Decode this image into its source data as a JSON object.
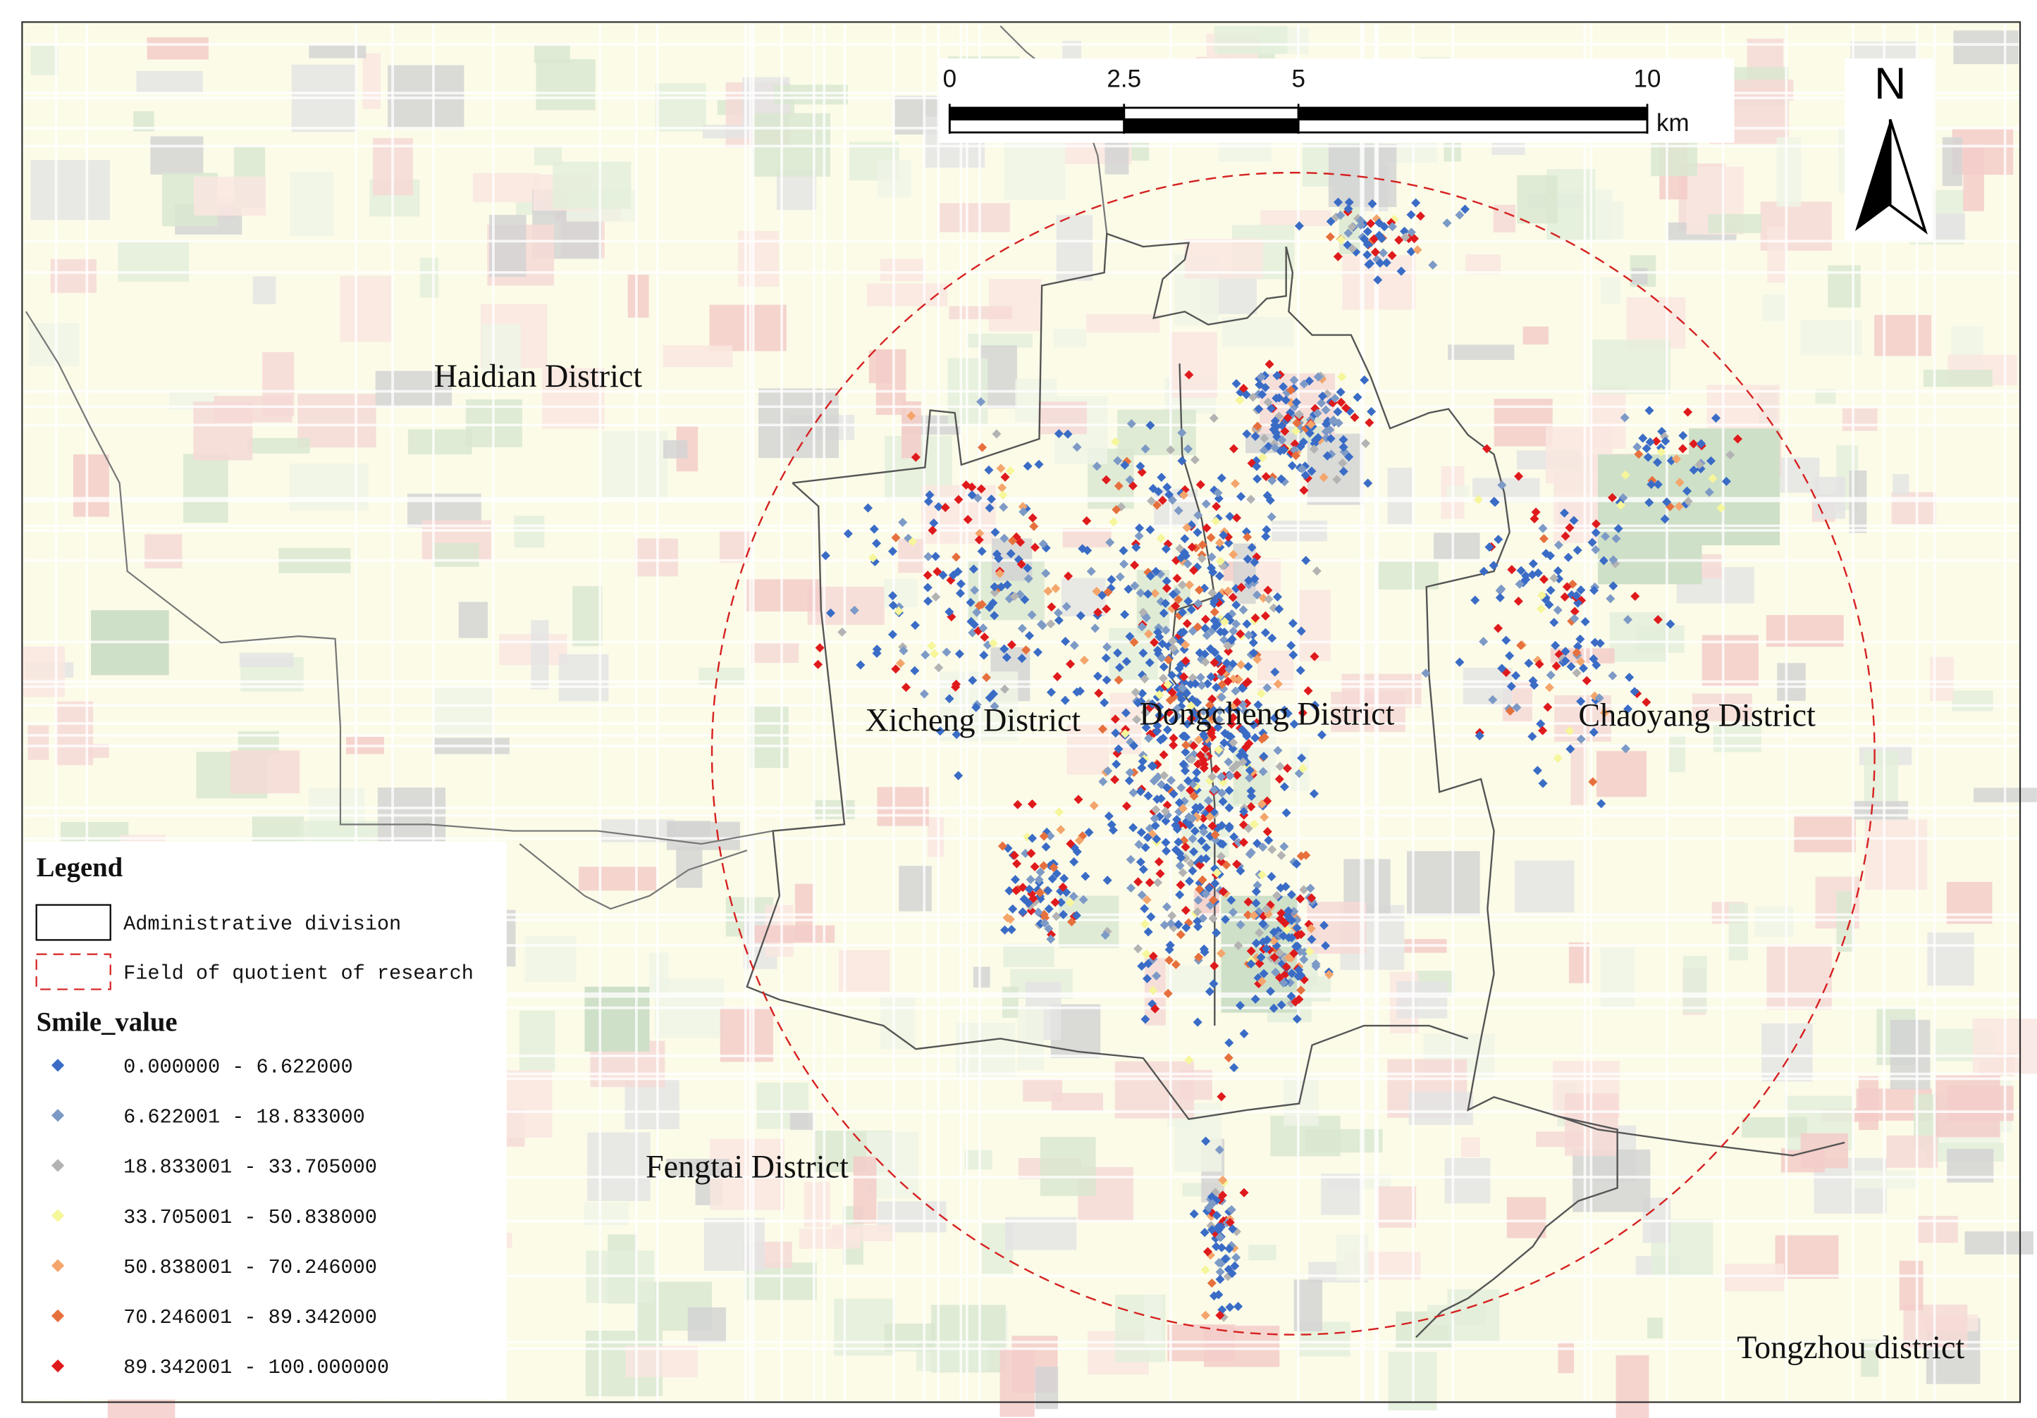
{
  "map": {
    "scale_bar": {
      "ticks": [
        0,
        2.5,
        5,
        10
      ],
      "unit": "km"
    },
    "north": "N",
    "districts": [
      "Haidian District",
      "Xicheng District",
      "Dongcheng District",
      "Chaoyang District",
      "Fengtai District",
      "Tongzhou district"
    ],
    "legend": {
      "title": "Legend",
      "boundaries": [
        "Administrative division",
        "Field of quotient of research"
      ],
      "value_title": "Smile_value",
      "classes": [
        {
          "label": "0.000000 - 6.622000",
          "color": "#3a6cc6"
        },
        {
          "label": "6.622001 - 18.833000",
          "color": "#7d9ac6"
        },
        {
          "label": "18.833001 - 33.705000",
          "color": "#b3b3b3"
        },
        {
          "label": "33.705001 - 50.838000",
          "color": "#f6f69a"
        },
        {
          "label": "50.838001 - 70.246000",
          "color": "#f4a56b"
        },
        {
          "label": "70.246001 - 89.342000",
          "color": "#e6703d"
        },
        {
          "label": "89.342001 - 100.000000",
          "color": "#df1a1c"
        }
      ]
    }
  }
}
